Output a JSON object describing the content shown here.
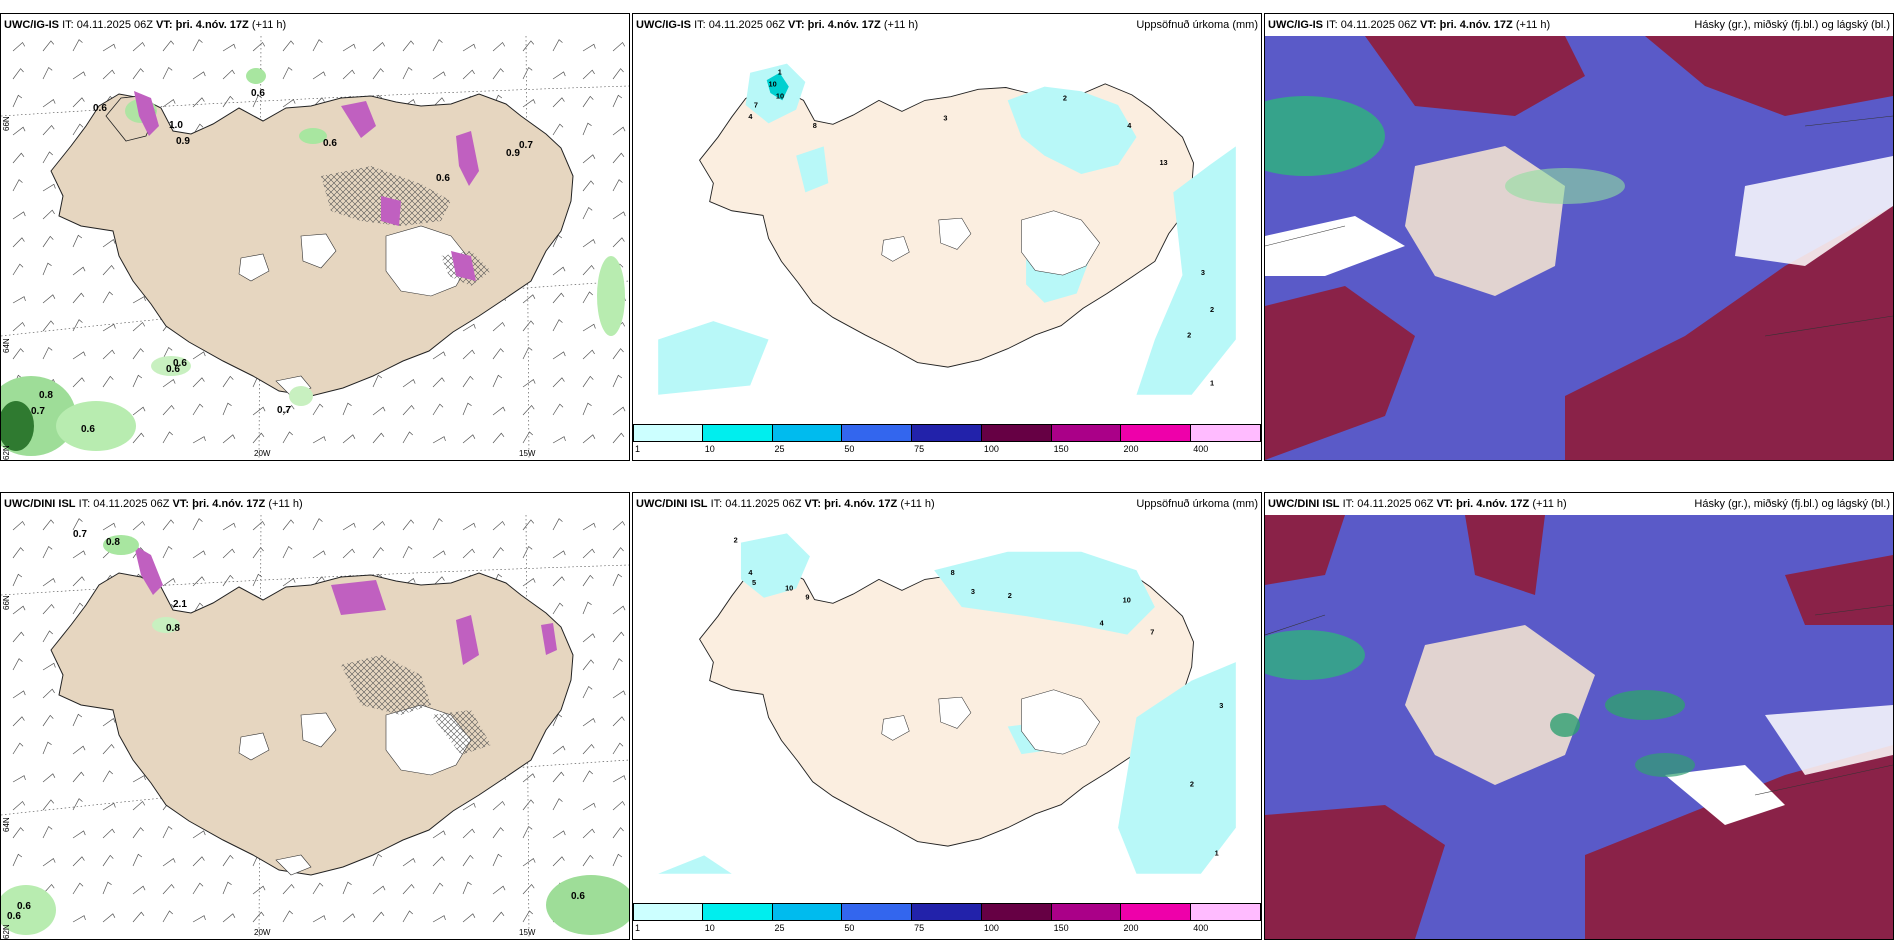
{
  "panels": {
    "p1": {
      "model": "UWC/IG-IS",
      "it": "IT: 04.11.2025 06Z",
      "vt_label": "VT:",
      "vt": "þri. 4.nóv. 17Z",
      "lead": "(+11 h)",
      "right": ""
    },
    "p2": {
      "model": "UWC/IG-IS",
      "it": "IT: 04.11.2025 06Z",
      "vt_label": "VT:",
      "vt": "þri. 4.nóv. 17Z",
      "lead": "(+11 h)",
      "right": "Uppsöfnuð úrkoma (mm)"
    },
    "p3": {
      "model": "UWC/IG-IS",
      "it": "IT: 04.11.2025 06Z",
      "vt_label": "VT:",
      "vt": "þri. 4.nóv. 17Z",
      "lead": "(+11 h)",
      "right": "Hásky (gr.), miðský (fj.bl.) og lágský (bl.)"
    },
    "p4": {
      "model": "UWC/DINI ISL",
      "it": "IT: 04.11.2025 06Z",
      "vt_label": "VT:",
      "vt": "þri. 4.nóv. 17Z",
      "lead": "(+11 h)",
      "right": ""
    },
    "p5": {
      "model": "UWC/DINI ISL",
      "it": "IT: 04.11.2025 06Z",
      "vt_label": "VT:",
      "vt": "þri. 4.nóv. 17Z",
      "lead": "(+11 h)",
      "right": "Uppsöfnuð úrkoma (mm)"
    },
    "p6": {
      "model": "UWC/DINI ISL",
      "it": "IT: 04.11.2025 06Z",
      "vt_label": "VT:",
      "vt": "þri. 4.nóv. 17Z",
      "lead": "(+11 h)",
      "right": "Hásky (gr.), miðský (fj.bl.) og lágský (bl.)"
    }
  },
  "axes": {
    "lon_20w": "20W",
    "lon_15w": "15W",
    "lat_66n": "66N",
    "lat_64n": "64N",
    "lat_62n": "62N"
  },
  "colorbar": {
    "labels": [
      "1",
      "10",
      "25",
      "50",
      "75",
      "100",
      "150",
      "200",
      "400"
    ],
    "colors": [
      "#ccffff",
      "#00eeee",
      "#00bbee",
      "#3366ee",
      "#2222aa",
      "#660044",
      "#aa0088",
      "#ee00aa",
      "#ffbbff"
    ]
  },
  "wind_labels_ig": [
    "0.6",
    "0.6",
    "1.0",
    "0.9",
    "0.6",
    "0.6",
    "0.9",
    "0.7",
    "0.6",
    "0.6",
    "0.8",
    "0.7",
    "0.6",
    "0.7"
  ],
  "wind_labels_dini": [
    "0.7",
    "0.8",
    "2.1",
    "0.8",
    "0.6",
    "0.6",
    "0.6"
  ],
  "precip_labels_ig": [
    "1",
    "10",
    "10",
    "4",
    "7",
    "8",
    "3",
    "2",
    "4",
    "13",
    "3",
    "2",
    "2",
    "1"
  ],
  "precip_labels_dini": [
    "2",
    "4",
    "5",
    "10",
    "9",
    "8",
    "3",
    "2",
    "4",
    "10",
    "7",
    "3",
    "2",
    "1"
  ]
}
